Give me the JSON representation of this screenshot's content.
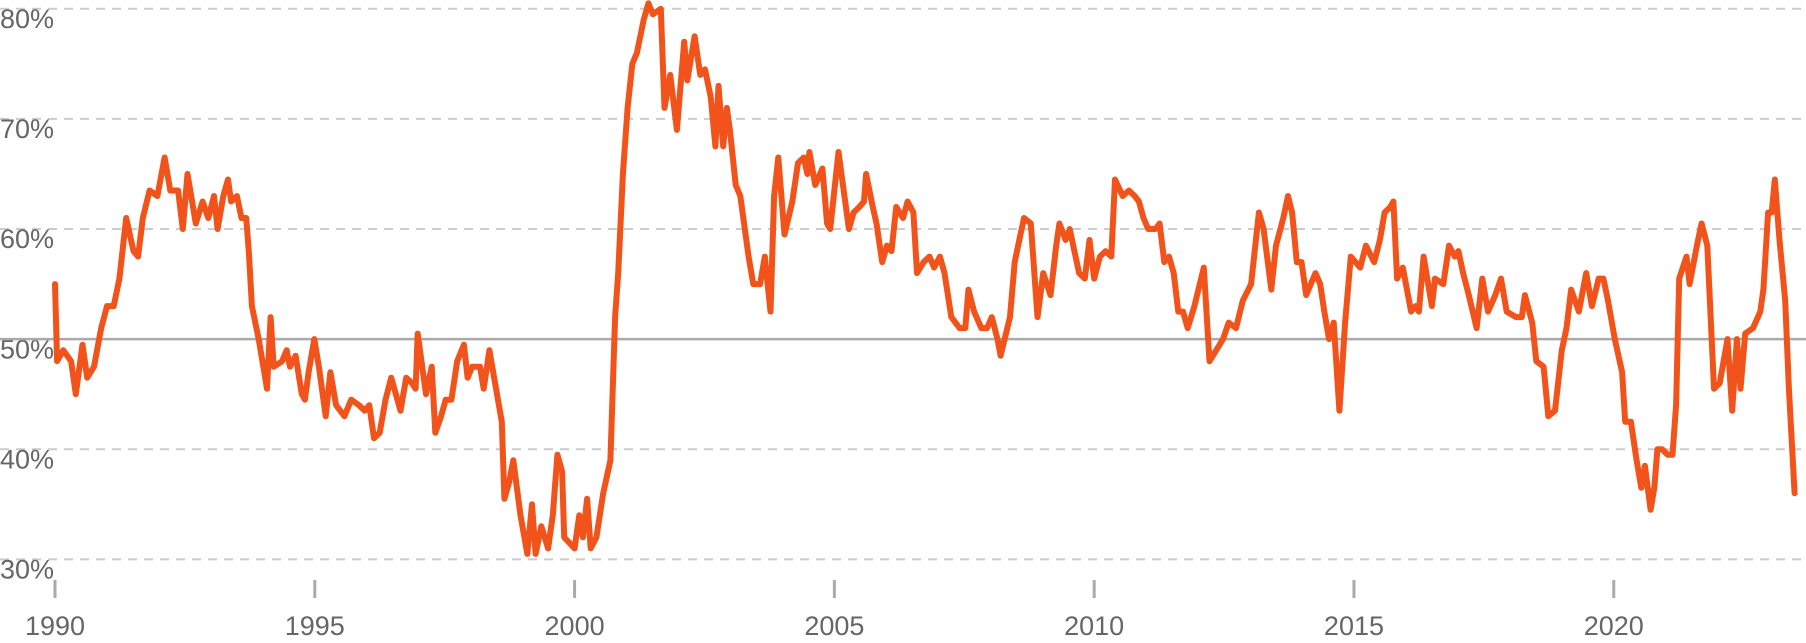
{
  "chart_data": {
    "type": "line",
    "x": [
      1990.0,
      1990.04,
      1990.16,
      1990.31,
      1990.4,
      1990.53,
      1990.62,
      1990.75,
      1990.89,
      1991.0,
      1991.13,
      1991.24,
      1991.37,
      1991.51,
      1991.6,
      1991.69,
      1991.82,
      1991.97,
      1992.11,
      1992.22,
      1992.37,
      1992.46,
      1992.55,
      1992.71,
      1992.84,
      1992.95,
      1993.06,
      1993.13,
      1993.24,
      1993.33,
      1993.39,
      1993.5,
      1993.59,
      1993.68,
      1993.73,
      1993.79,
      1993.92,
      1994.08,
      1994.15,
      1994.21,
      1994.37,
      1994.46,
      1994.52,
      1994.63,
      1994.75,
      1994.81,
      1994.88,
      1994.99,
      1995.08,
      1995.21,
      1995.3,
      1995.41,
      1995.57,
      1995.7,
      1995.85,
      1995.96,
      1996.05,
      1996.14,
      1996.25,
      1996.36,
      1996.47,
      1996.65,
      1996.76,
      1996.87,
      1996.94,
      1996.98,
      1997.14,
      1997.25,
      1997.32,
      1997.43,
      1997.52,
      1997.63,
      1997.74,
      1997.87,
      1997.94,
      1998.03,
      1998.18,
      1998.25,
      1998.36,
      1998.47,
      1998.6,
      1998.65,
      1998.74,
      1998.82,
      1998.96,
      1999.09,
      1999.18,
      1999.25,
      1999.36,
      1999.49,
      1999.58,
      1999.67,
      1999.76,
      1999.8,
      2000.0,
      2000.09,
      2000.16,
      2000.24,
      2000.31,
      2000.42,
      2000.55,
      2000.69,
      2000.78,
      2000.84,
      2000.93,
      2001.02,
      2001.11,
      2001.2,
      2001.33,
      2001.42,
      2001.51,
      2001.66,
      2001.73,
      2001.84,
      2001.97,
      2002.11,
      2002.17,
      2002.31,
      2002.42,
      2002.51,
      2002.62,
      2002.71,
      2002.77,
      2002.86,
      2002.93,
      2002.99,
      2003.1,
      2003.19,
      2003.35,
      2003.44,
      2003.57,
      2003.66,
      2003.77,
      2003.84,
      2003.92,
      2004.04,
      2004.19,
      2004.3,
      2004.41,
      2004.48,
      2004.52,
      2004.63,
      2004.77,
      2004.86,
      2004.92,
      2005.08,
      2005.28,
      2005.37,
      2005.48,
      2005.57,
      2005.61,
      2005.74,
      2005.81,
      2005.92,
      2006.01,
      2006.1,
      2006.19,
      2006.32,
      2006.41,
      2006.52,
      2006.59,
      2006.72,
      2006.83,
      2006.92,
      2007.03,
      2007.12,
      2007.25,
      2007.41,
      2007.52,
      2007.58,
      2007.69,
      2007.83,
      2007.94,
      2008.03,
      2008.14,
      2008.2,
      2008.38,
      2008.47,
      2008.56,
      2008.65,
      2008.78,
      2008.91,
      2009.02,
      2009.16,
      2009.27,
      2009.33,
      2009.45,
      2009.53,
      2009.62,
      2009.71,
      2009.82,
      2009.91,
      2010.0,
      2010.11,
      2010.22,
      2010.33,
      2010.4,
      2010.55,
      2010.67,
      2010.78,
      2010.86,
      2010.95,
      2011.04,
      2011.18,
      2011.26,
      2011.35,
      2011.44,
      2011.53,
      2011.62,
      2011.71,
      2011.8,
      2011.93,
      2012.11,
      2012.22,
      2012.35,
      2012.48,
      2012.59,
      2012.73,
      2012.86,
      2013.02,
      2013.17,
      2013.26,
      2013.41,
      2013.5,
      2013.64,
      2013.73,
      2013.81,
      2013.9,
      2013.99,
      2014.08,
      2014.17,
      2014.26,
      2014.35,
      2014.43,
      2014.52,
      2014.61,
      2014.72,
      2014.83,
      2014.94,
      2015.12,
      2015.23,
      2015.39,
      2015.5,
      2015.59,
      2015.7,
      2015.76,
      2015.83,
      2015.94,
      2016.1,
      2016.19,
      2016.25,
      2016.34,
      2016.5,
      2016.56,
      2016.72,
      2016.83,
      2016.94,
      2017.01,
      2017.1,
      2017.21,
      2017.36,
      2017.47,
      2017.58,
      2017.72,
      2017.83,
      2017.94,
      2018.12,
      2018.23,
      2018.29,
      2018.43,
      2018.51,
      2018.65,
      2018.74,
      2018.87,
      2019.0,
      2019.09,
      2019.18,
      2019.33,
      2019.47,
      2019.58,
      2019.71,
      2019.8,
      2019.89,
      2020.02,
      2020.16,
      2020.22,
      2020.33,
      2020.44,
      2020.53,
      2020.6,
      2020.71,
      2020.78,
      2020.84,
      2020.93,
      2021.04,
      2021.13,
      2021.2,
      2021.26,
      2021.4,
      2021.46,
      2021.6,
      2021.69,
      2021.8,
      2021.93,
      2022.04,
      2022.19,
      2022.28,
      2022.37,
      2022.44,
      2022.53,
      2022.68,
      2022.82,
      2022.88,
      2022.97,
      2023.04,
      2023.1,
      2023.19,
      2023.3,
      2023.37,
      2023.48
    ],
    "series": [
      {
        "color": "#f1531a",
        "values": [
          55,
          48,
          49,
          48,
          45,
          49.5,
          46.5,
          47.5,
          51,
          53,
          53,
          55.5,
          61,
          58,
          57.5,
          61,
          63.5,
          63,
          66.5,
          63.5,
          63.5,
          60,
          65,
          60.5,
          62.5,
          61,
          63,
          60,
          63,
          64.5,
          62.5,
          63,
          61,
          61,
          58,
          53,
          50,
          45.5,
          52,
          47.5,
          48,
          49,
          47.5,
          48.5,
          45,
          44.5,
          47,
          50,
          47.5,
          43,
          47,
          44,
          43,
          44.5,
          44,
          43.5,
          44,
          41,
          41.5,
          44.5,
          46.5,
          43.5,
          46.5,
          46,
          45.5,
          50.5,
          45,
          47.5,
          41.5,
          43,
          44.5,
          44.5,
          48,
          49.5,
          46.5,
          47.5,
          47.5,
          45.5,
          49,
          46,
          42.5,
          35.5,
          37,
          39,
          34,
          30.5,
          35,
          30.5,
          33,
          31,
          34,
          39.5,
          38,
          32,
          31,
          34,
          32,
          35.5,
          31,
          32,
          36,
          39,
          52,
          56,
          65,
          71,
          75,
          76,
          79,
          80.5,
          79.5,
          80,
          71,
          74,
          69,
          77,
          73.5,
          77.5,
          74,
          74.5,
          72,
          67.5,
          73,
          67.5,
          71,
          69,
          64,
          63,
          57.5,
          55,
          55,
          57.5,
          52.5,
          63,
          66.5,
          59.5,
          62.5,
          66,
          66.5,
          65,
          67,
          64,
          65.5,
          60.5,
          60,
          67,
          60,
          61.5,
          62,
          62.5,
          65,
          62,
          60.5,
          57,
          58.5,
          58,
          62,
          61,
          62.5,
          61.5,
          56,
          57,
          57.5,
          56.5,
          57.5,
          56,
          52,
          51,
          51,
          54.5,
          52.5,
          51,
          51,
          52,
          50,
          48.5,
          52,
          57,
          59,
          61,
          60.5,
          52,
          56,
          54,
          58.5,
          60.5,
          59,
          60,
          58,
          56,
          55.5,
          59,
          55.5,
          57.5,
          58,
          57.5,
          64.5,
          63,
          63.5,
          63,
          62.5,
          61,
          60,
          60,
          60.5,
          57,
          57.5,
          56,
          52.5,
          52.5,
          51,
          53,
          56.5,
          48,
          49,
          50,
          51.5,
          51,
          53.5,
          55,
          61.5,
          60,
          54.5,
          58.5,
          61,
          63,
          61.5,
          57,
          57,
          54,
          55,
          56,
          55,
          52.5,
          50,
          51.5,
          43.5,
          51.5,
          57.5,
          56.5,
          58.5,
          57,
          59,
          61.5,
          62,
          62.5,
          55.5,
          56.5,
          52.5,
          53,
          52.5,
          57.5,
          53,
          55.5,
          55,
          58.5,
          57.5,
          58,
          56,
          54,
          51,
          55.5,
          52.5,
          54,
          55.5,
          52.5,
          52,
          52,
          54,
          51.5,
          48,
          47.5,
          43,
          43.5,
          49,
          51,
          54.5,
          52.5,
          56,
          53,
          55.5,
          55.5,
          53.5,
          50,
          47,
          42.5,
          42.5,
          39,
          36.5,
          38.5,
          34.5,
          36.5,
          40,
          40,
          39.5,
          39.5,
          44,
          55.5,
          57.5,
          55,
          58.5,
          60.5,
          58.5,
          45.5,
          46,
          50,
          43.5,
          50,
          45.5,
          50.5,
          51,
          52.5,
          54.5,
          61.5,
          61.5,
          64.5,
          59,
          53.5,
          45.5,
          36
        ]
      }
    ],
    "xlim": [
      1990,
      2023.7
    ],
    "ylim": [
      27.4,
      80.8
    ],
    "xticks": [
      1990,
      1995,
      2000,
      2005,
      2010,
      2015,
      2020
    ],
    "yticks": [
      {
        "value": 30,
        "label": "30%"
      },
      {
        "value": 40,
        "label": "40%"
      },
      {
        "value": 50,
        "label": "50%"
      },
      {
        "value": 60,
        "label": "60%"
      },
      {
        "value": 70,
        "label": "70%"
      },
      {
        "value": 80,
        "label": "80%"
      }
    ],
    "reference_line": 50,
    "grid": true
  }
}
